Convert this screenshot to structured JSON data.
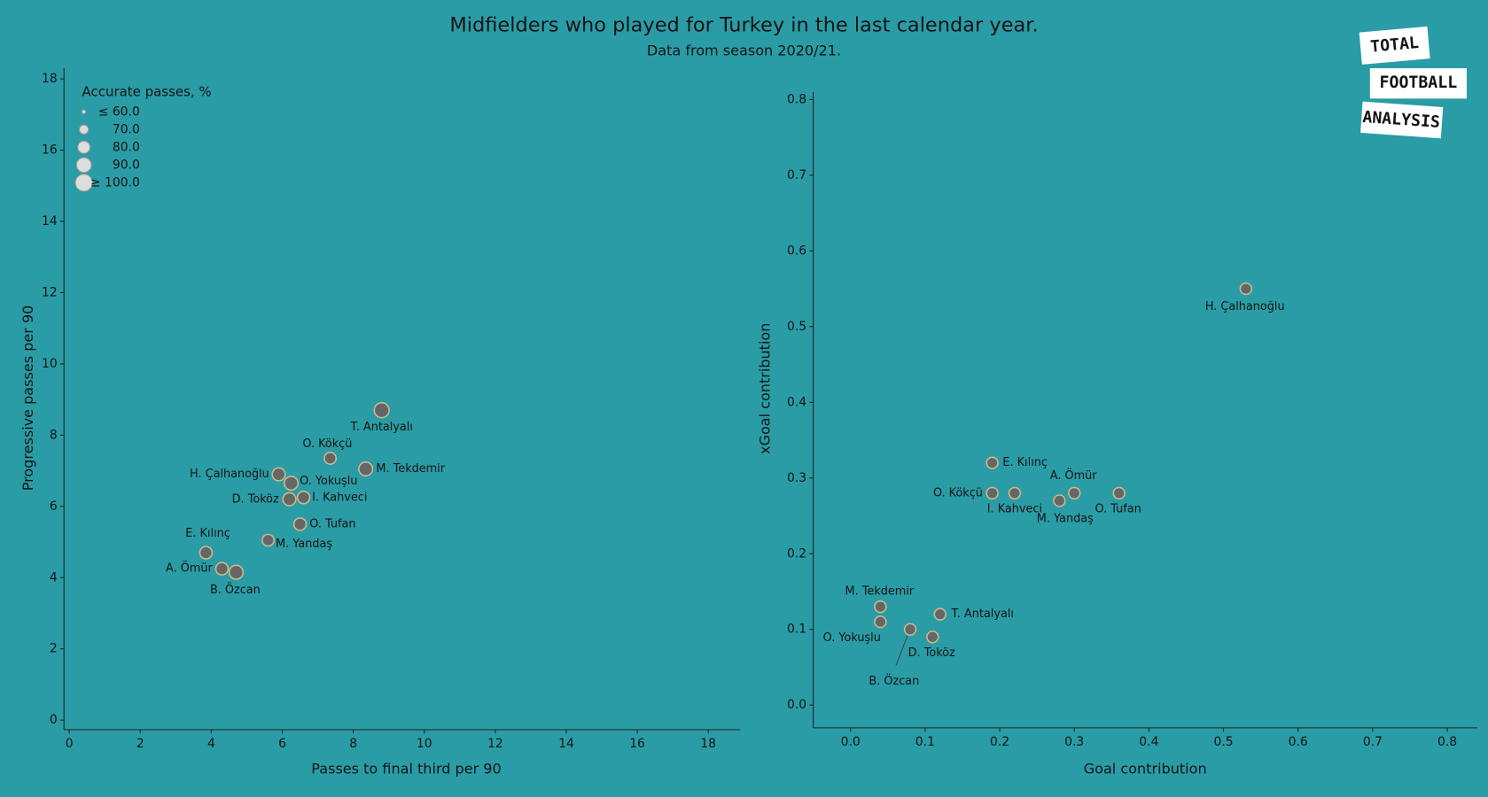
{
  "title": "Midfielders who played for Turkey in the last calendar year.",
  "subtitle": "Data from season 2020/21.",
  "logo": [
    "TOTAL",
    "FOOTBALL",
    "ANALYSIS"
  ],
  "chart_data": [
    {
      "type": "scatter",
      "x_label": "Passes to final third per 90",
      "y_label": "Progressive passes per 90",
      "labels": [
        "T. Antalyalı",
        "O. Kökçü",
        "M. Tekdemir",
        "H. Çalhanoğlu",
        "O. Yokuşlu",
        "I. Kahveci",
        "D. Toköz",
        "O. Tufan",
        "M. Yandaş",
        "E. Kılınç",
        "A. Ömür",
        "B. Özcan"
      ],
      "x": [
        8.8,
        7.35,
        8.35,
        5.9,
        6.25,
        6.6,
        6.2,
        6.5,
        5.6,
        3.85,
        4.3,
        4.7
      ],
      "values": [
        8.7,
        7.35,
        7.05,
        6.9,
        6.65,
        6.25,
        6.2,
        5.5,
        5.05,
        4.7,
        4.25,
        4.15
      ],
      "sizes": [
        90,
        78,
        85,
        82,
        85,
        80,
        82,
        80,
        78,
        80,
        80,
        86
      ],
      "size_legend": {
        "title": "Accurate passes, %",
        "values": [
          {
            "value": 60,
            "label": "≤ 60.0"
          },
          {
            "value": 70,
            "label": "70.0"
          },
          {
            "value": 80,
            "label": "80.0"
          },
          {
            "value": 90,
            "label": "90.0"
          },
          {
            "value": 100,
            "label": "≥ 100.0"
          }
        ]
      },
      "xlim": [
        -0.15,
        18.9
      ],
      "ylim": [
        -0.27,
        18.3
      ],
      "xticks": [
        0,
        2,
        4,
        6,
        8,
        10,
        12,
        14,
        16,
        18
      ],
      "yticks": [
        0,
        2,
        4,
        6,
        8,
        10,
        12,
        14,
        16,
        18
      ],
      "color": "#666666"
    },
    {
      "type": "scatter",
      "x_label": "Goal contribution",
      "y_label": "xGoal contribution",
      "labels": [
        "H. Çalhanoğlu",
        "E. Kılınç",
        "A. Ömür",
        "O. Kökçü",
        "I. Kahveci",
        "M. Yandaş",
        "O. Tufan",
        "M. Tekdemir",
        "O. Yokuşlu",
        "T. Antalyalı",
        "B. Özcan",
        "D. Toköz"
      ],
      "x": [
        0.53,
        0.19,
        0.3,
        0.19,
        0.22,
        0.28,
        0.36,
        0.04,
        0.04,
        0.12,
        0.08,
        0.11
      ],
      "values": [
        0.55,
        0.32,
        0.28,
        0.28,
        0.28,
        0.27,
        0.28,
        0.13,
        0.11,
        0.12,
        0.1,
        0.09
      ],
      "xlim": [
        -0.05,
        0.84
      ],
      "ylim": [
        -0.03,
        0.81
      ],
      "xticks": [
        {
          "value": 0,
          "label": "0.0"
        },
        0.1,
        0.2,
        0.3,
        0.4,
        0.5,
        0.6,
        0.7,
        0.8
      ],
      "yticks": [
        {
          "value": 0,
          "label": "0.0"
        },
        0.1,
        0.2,
        0.3,
        0.4,
        0.5,
        0.6,
        0.7,
        0.8
      ],
      "color": "#666666"
    }
  ]
}
